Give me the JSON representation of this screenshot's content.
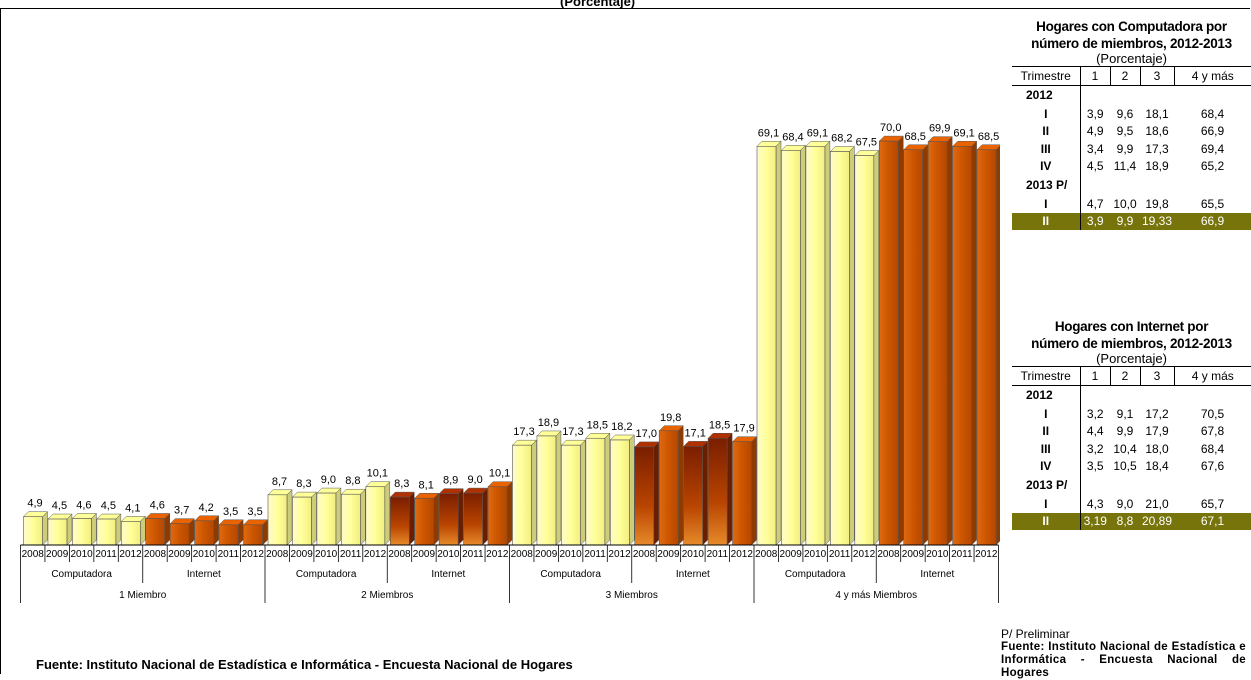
{
  "header_fragment": "(Porcentaje)",
  "source": "Fuente: Instituto Nacional de Estadística e Informática - Encuesta Nacional de Hogares",
  "chart_data": {
    "type": "bar",
    "years": [
      "2008",
      "2009",
      "2010",
      "2011",
      "2012"
    ],
    "groups": [
      {
        "label": "1 Miembro",
        "subgroups": [
          {
            "name": "Computadora",
            "values": [
              4.9,
              4.5,
              4.6,
              4.5,
              4.1
            ]
          },
          {
            "name": "Internet",
            "values": [
              4.6,
              3.7,
              4.2,
              3.5,
              3.5
            ]
          }
        ]
      },
      {
        "label": "2 Miembros",
        "subgroups": [
          {
            "name": "Computadora",
            "values": [
              8.7,
              8.3,
              9.0,
              8.8,
              10.1
            ]
          },
          {
            "name": "Internet",
            "values": [
              8.3,
              8.1,
              8.9,
              9.0,
              10.1
            ]
          }
        ]
      },
      {
        "label": "3 Miembros",
        "subgroups": [
          {
            "name": "Computadora",
            "values": [
              17.3,
              18.9,
              17.3,
              18.5,
              18.2
            ]
          },
          {
            "name": "Internet",
            "values": [
              17.0,
              19.8,
              17.1,
              18.5,
              17.9
            ]
          }
        ]
      },
      {
        "label": "4 y más Miembros",
        "subgroups": [
          {
            "name": "Computadora",
            "values": [
              69.1,
              68.4,
              69.1,
              68.2,
              67.5
            ]
          },
          {
            "name": "Internet",
            "values": [
              70.0,
              68.5,
              69.9,
              69.1,
              68.5
            ]
          }
        ]
      }
    ],
    "ylim": [
      0,
      80
    ],
    "colors": {
      "computadora": "#ffff99",
      "internet": "#cc5500",
      "internet_dark": "#992a00"
    }
  },
  "tables": [
    {
      "title_line1": "Hogares con Computadora  por",
      "title_line2": "número de miembros, 2012-2013",
      "unit": "(Porcentaje)",
      "headers": [
        "Trimestre",
        "1",
        "2",
        "3",
        "4 y más"
      ],
      "rows": [
        {
          "type": "year",
          "label": "2012"
        },
        {
          "type": "row",
          "label": "I",
          "values": [
            "3,9",
            "9,6",
            "18,1",
            "68,4"
          ]
        },
        {
          "type": "row",
          "label": "II",
          "values": [
            "4,9",
            "9,5",
            "18,6",
            "66,9"
          ]
        },
        {
          "type": "row",
          "label": "III",
          "values": [
            "3,4",
            "9,9",
            "17,3",
            "69,4"
          ]
        },
        {
          "type": "row",
          "label": "IV",
          "values": [
            "4,5",
            "11,4",
            "18,9",
            "65,2"
          ]
        },
        {
          "type": "year",
          "label": "2013 P/"
        },
        {
          "type": "row",
          "label": "I",
          "values": [
            "4,7",
            "10,0",
            "19,8",
            "65,5"
          ]
        },
        {
          "type": "hl",
          "label": "II",
          "values": [
            "3,9",
            "9,9",
            "19,33",
            "66,9"
          ]
        }
      ]
    },
    {
      "title_line1": "Hogares con Internet  por",
      "title_line2": "número de miembros, 2012-2013",
      "unit": "(Porcentaje)",
      "headers": [
        "Trimestre",
        "1",
        "2",
        "3",
        "4 y más"
      ],
      "rows": [
        {
          "type": "year",
          "label": "2012"
        },
        {
          "type": "row",
          "label": "I",
          "values": [
            "3,2",
            "9,1",
            "17,2",
            "70,5"
          ]
        },
        {
          "type": "row",
          "label": "II",
          "values": [
            "4,4",
            "9,9",
            "17,9",
            "67,8"
          ]
        },
        {
          "type": "row",
          "label": "III",
          "values": [
            "3,2",
            "10,4",
            "18,0",
            "68,4"
          ]
        },
        {
          "type": "row",
          "label": "IV",
          "values": [
            "3,5",
            "10,5",
            "18,4",
            "67,6"
          ]
        },
        {
          "type": "year",
          "label": "2013 P/"
        },
        {
          "type": "row",
          "label": "I",
          "values": [
            "4,3",
            "9,0",
            "21,0",
            "65,7"
          ]
        },
        {
          "type": "hl",
          "label": "II",
          "values": [
            "3,19",
            "8,8",
            "20,89",
            "67,1"
          ]
        }
      ]
    }
  ],
  "note": "P/ Preliminar",
  "source_right": "Fuente: Instituto Nacional de Estadística e Informática - Encuesta Nacional de Hogares"
}
